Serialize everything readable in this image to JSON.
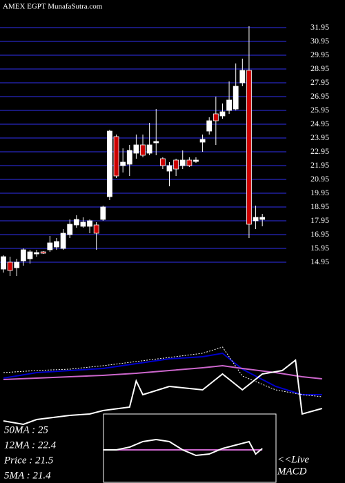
{
  "header": "AMEX  EGPT MunafaSutra.com",
  "chart_data": {
    "type": "candlestick",
    "open": [
      14.45,
      14.95,
      14.55,
      15.05,
      15.2,
      15.55,
      15.7,
      15.85,
      16.05,
      15.95,
      16.95,
      17.65,
      17.55,
      17.55,
      17.65,
      18.05,
      19.7,
      24.05,
      21.95,
      22.05,
      22.85,
      23.45,
      22.85,
      23.6,
      22.45,
      21.55,
      22.35,
      21.95,
      22.35,
      22.25,
      23.65,
      24.45,
      25.7,
      25.55,
      25.95,
      26.05,
      27.95,
      28.85,
      17.95,
      18.05
    ],
    "high": [
      15.45,
      15.35,
      15.2,
      15.95,
      15.85,
      15.85,
      15.75,
      16.85,
      16.7,
      17.35,
      18.05,
      18.35,
      18.2,
      18.05,
      17.85,
      19.05,
      24.55,
      24.2,
      23.2,
      23.45,
      24.2,
      24.2,
      25.05,
      26.05,
      22.55,
      22.2,
      22.45,
      23.05,
      22.55,
      22.55,
      24.2,
      25.45,
      26.95,
      26.45,
      28.05,
      29.35,
      29.7,
      32.05,
      19.05,
      18.45
    ],
    "low": [
      14.2,
      13.95,
      13.95,
      14.7,
      14.85,
      15.35,
      15.55,
      15.7,
      15.85,
      15.85,
      16.7,
      17.45,
      17.45,
      17.05,
      15.85,
      17.95,
      19.45,
      21.05,
      21.45,
      21.2,
      22.45,
      22.55,
      22.7,
      22.7,
      21.7,
      20.45,
      21.2,
      21.7,
      21.85,
      22.15,
      22.95,
      24.2,
      23.45,
      25.35,
      25.7,
      25.95,
      27.7,
      16.7,
      17.35,
      17.55
    ],
    "close": [
      15.35,
      14.35,
      14.95,
      15.85,
      15.7,
      15.65,
      15.6,
      16.35,
      16.45,
      17.05,
      17.7,
      18.05,
      17.85,
      17.95,
      17.05,
      18.95,
      24.45,
      21.2,
      22.2,
      23.05,
      23.45,
      22.7,
      23.45,
      23.7,
      21.95,
      21.95,
      21.7,
      22.35,
      21.95,
      22.35,
      23.85,
      25.2,
      25.2,
      25.85,
      26.7,
      27.7,
      28.85,
      17.7,
      18.2,
      18.2
    ],
    "up_color": "#ffffff",
    "down_color": "#cc0000",
    "ylim": [
      14.2,
      31.95
    ],
    "yticks": [
      31.95,
      30.95,
      29.95,
      28.95,
      27.95,
      26.95,
      25.95,
      24.95,
      23.95,
      22.95,
      21.95,
      20.95,
      19.95,
      18.95,
      17.95,
      16.95,
      15.95,
      14.95
    ],
    "grid": true,
    "grid_color": "#2020a0"
  },
  "ma_panel": {
    "type": "line",
    "ylim": [
      18,
      30
    ],
    "series": [
      {
        "color": "#0000cc",
        "x": [
          0,
          5,
          10,
          15,
          20,
          25,
          30,
          33,
          36,
          41,
          45,
          48
        ],
        "values": [
          24.2,
          25.0,
          25.3,
          25.6,
          26.3,
          27.0,
          27.3,
          27.8,
          25.5,
          23.0,
          21.8,
          21.8
        ]
      },
      {
        "color": "#ffffff",
        "dashed": true,
        "x": [
          0,
          5,
          10,
          15,
          20,
          25,
          30,
          33,
          36,
          41,
          45,
          48
        ],
        "values": [
          25.0,
          25.3,
          25.5,
          26.0,
          26.6,
          27.2,
          27.8,
          28.7,
          24.5,
          22.5,
          21.8,
          21.5
        ]
      },
      {
        "color": "#cc66cc",
        "x": [
          0,
          5,
          10,
          15,
          20,
          25,
          30,
          33,
          36,
          41,
          45,
          48
        ],
        "values": [
          24.0,
          24.2,
          24.4,
          24.6,
          24.9,
          25.3,
          25.7,
          26.0,
          25.6,
          25.0,
          24.4,
          24.1
        ]
      },
      {
        "color": "#ffffff",
        "x": [
          0,
          3,
          5,
          10,
          13,
          15,
          19,
          20,
          21,
          25,
          30,
          33,
          36,
          39,
          42,
          44,
          45,
          48
        ],
        "values": [
          18.0,
          17.5,
          18.2,
          18.8,
          19.0,
          19.5,
          20.0,
          23.8,
          21.8,
          23.0,
          22.5,
          24.8,
          22.5,
          24.8,
          25.3,
          26.8,
          19.0,
          19.8
        ]
      }
    ],
    "labels": [
      "50MA  : 25",
      "12MA  : 22.4",
      "Price   : 21.5",
      "5MA  : 21.4"
    ]
  },
  "macd_panel": {
    "type": "line",
    "ylim": [
      -1,
      1
    ],
    "label_1": "<<Live",
    "label_2": "MACD",
    "series": [
      {
        "color": "#cc66cc",
        "x": [
          15,
          39
        ],
        "values": [
          -0.04,
          -0.04
        ]
      },
      {
        "color": "#ffffff",
        "x": [
          15,
          17,
          19,
          21,
          23,
          25,
          27,
          29,
          31,
          33,
          35,
          37,
          38,
          39
        ],
        "values": [
          -0.04,
          -0.04,
          0.04,
          0.2,
          0.26,
          0.2,
          -0.04,
          -0.2,
          -0.16,
          0,
          0.1,
          0.2,
          -0.16,
          0
        ]
      }
    ]
  }
}
